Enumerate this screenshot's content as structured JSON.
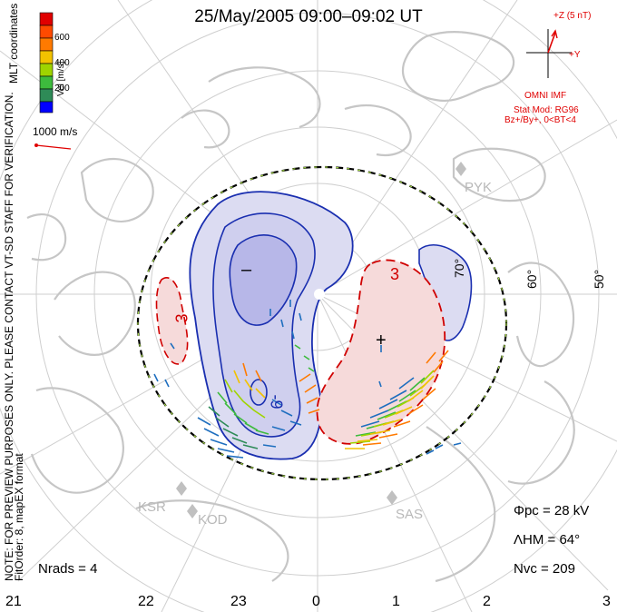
{
  "title": "25/May/2005 09:00–09:02 UT",
  "colorbar": {
    "header": "MLT coordinates",
    "label": "Vel [m/s]",
    "ticks": [
      "600",
      "400",
      "200"
    ],
    "colors": [
      "#e00000",
      "#ff7a00",
      "#f2c200",
      "#9fd400",
      "#3dbb3d",
      "#2e8b57",
      "#1f6fbf",
      "#0000ff"
    ]
  },
  "scale_vector": {
    "label": "1000 m/s"
  },
  "imf": {
    "z_label": "+Z (5 nT)",
    "y_label": "+Y",
    "source": "OMNI IMF",
    "model": "Stat Mod: RG96",
    "condition": "Bz+/By+, 0<BT<4"
  },
  "disclaimer": {
    "line1": "NOTE: FOR PREVIEW PURPOSES ONLY. PLEASE CONTACT VT-SD STAFF FOR VERIFICATION.",
    "line2": "FitOrder: 8, mapEX format"
  },
  "latitude_labels": [
    "60°",
    "50°",
    "70°"
  ],
  "stations": [
    "PYK",
    "KSR",
    "KOD",
    "SAS"
  ],
  "contour_labels": {
    "minus": "–",
    "plus": "+",
    "neg": "-9",
    "pos": "3",
    "pos_west": "3"
  },
  "stats": {
    "phi_pc": "Φpc = 28 kV",
    "lambda_hm": "ΛHM = 64°",
    "n_vc": "Nvc = 209",
    "n_rads": "Nrads = 4"
  },
  "mlt_labels": [
    "21",
    "22",
    "23",
    "0",
    "1",
    "2",
    "3"
  ],
  "colors": {
    "negative_cell_line": "#1a2fb0",
    "negative_cell_fill": "#dcdcf2",
    "negative_core_fill": "#b7b7e8",
    "positive_cell_line": "#d00000",
    "positive_cell_fill": "#f6dada",
    "heppner_boundary": "#000000",
    "coastline": "#c8c8c8",
    "grid": "#c8c8c8"
  }
}
